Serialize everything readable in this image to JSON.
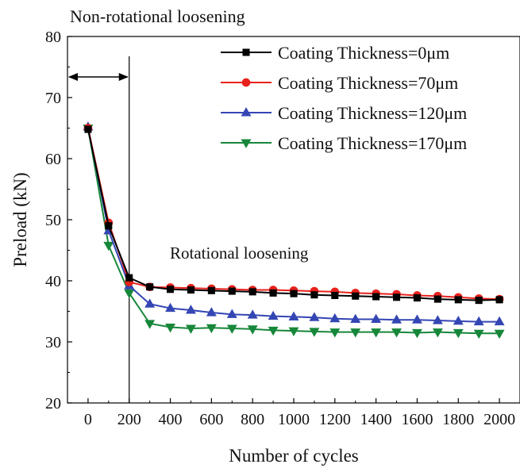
{
  "chart_data": {
    "type": "line",
    "xlabel": "Number of cycles",
    "ylabel": "Preload (kN)",
    "xlim": [
      -100,
      2100
    ],
    "ylim": [
      20,
      80
    ],
    "xticks": [
      0,
      200,
      400,
      600,
      800,
      1000,
      1200,
      1400,
      1600,
      1800,
      2000
    ],
    "yticks": [
      20,
      30,
      40,
      50,
      60,
      70,
      80
    ],
    "legend_position": "top-right",
    "grid": false,
    "x": [
      0,
      100,
      200,
      300,
      400,
      500,
      600,
      700,
      800,
      900,
      1000,
      1100,
      1200,
      1300,
      1400,
      1500,
      1600,
      1700,
      1800,
      1900,
      2000
    ],
    "series": [
      {
        "name": "Coating Thickness=0μm",
        "color": "#000000",
        "marker": "square",
        "values": [
          64.8,
          49.0,
          40.5,
          39.0,
          38.6,
          38.5,
          38.4,
          38.3,
          38.2,
          38.0,
          37.9,
          37.7,
          37.6,
          37.5,
          37.4,
          37.3,
          37.2,
          37.0,
          36.9,
          36.8,
          36.9
        ]
      },
      {
        "name": "Coating Thickness=70μm",
        "color": "#e8211c",
        "marker": "circle",
        "values": [
          65.0,
          49.5,
          39.8,
          39.0,
          38.9,
          38.8,
          38.7,
          38.6,
          38.5,
          38.5,
          38.4,
          38.3,
          38.2,
          38.0,
          37.9,
          37.8,
          37.6,
          37.5,
          37.3,
          37.1,
          37.0
        ]
      },
      {
        "name": "Coating Thickness=120μm",
        "color": "#3446b4",
        "marker": "triangle-up",
        "values": [
          65.2,
          48.2,
          39.2,
          36.2,
          35.5,
          35.2,
          34.8,
          34.5,
          34.4,
          34.2,
          34.1,
          34.0,
          33.8,
          33.7,
          33.7,
          33.6,
          33.6,
          33.5,
          33.4,
          33.3,
          33.3
        ]
      },
      {
        "name": "Coating Thickness=170μm",
        "color": "#17873a",
        "marker": "triangle-down",
        "values": [
          65.0,
          45.8,
          38.0,
          33.0,
          32.4,
          32.2,
          32.3,
          32.2,
          32.1,
          31.9,
          31.8,
          31.7,
          31.6,
          31.6,
          31.6,
          31.6,
          31.5,
          31.6,
          31.5,
          31.4,
          31.4
        ]
      }
    ],
    "divider_x": 200,
    "annotations": {
      "non_rotational": "Non-rotational loosening",
      "rotational": "Rotational loosening"
    }
  }
}
